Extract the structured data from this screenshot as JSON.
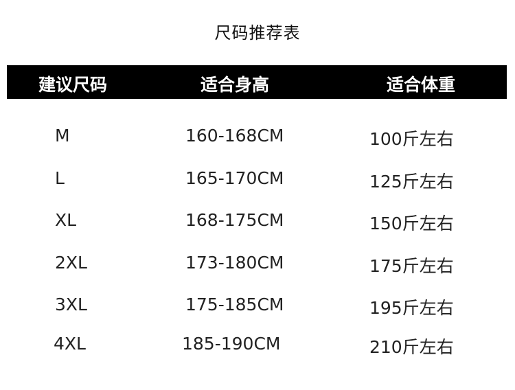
{
  "title": "尺码推荐表",
  "headers": [
    "建议尺码",
    "适合身高",
    "适合体重"
  ],
  "rows": [
    {
      "size": "M",
      "height": "160-168CM",
      "weight": "100斤左右"
    },
    {
      "size": "L",
      "height": "165-170CM",
      "weight": "125斤左右"
    },
    {
      "size": "XL",
      "height": "168-175CM",
      "weight": "150斤左右"
    },
    {
      "size": "2XL",
      "height": "173-180CM",
      "weight": "175斤左右"
    },
    {
      "size": "3XL",
      "height": "175-185CM",
      "weight": "195斤左右"
    },
    {
      "size": "4XL",
      "height": "185-190CM",
      "weight": "210斤左右"
    }
  ]
}
